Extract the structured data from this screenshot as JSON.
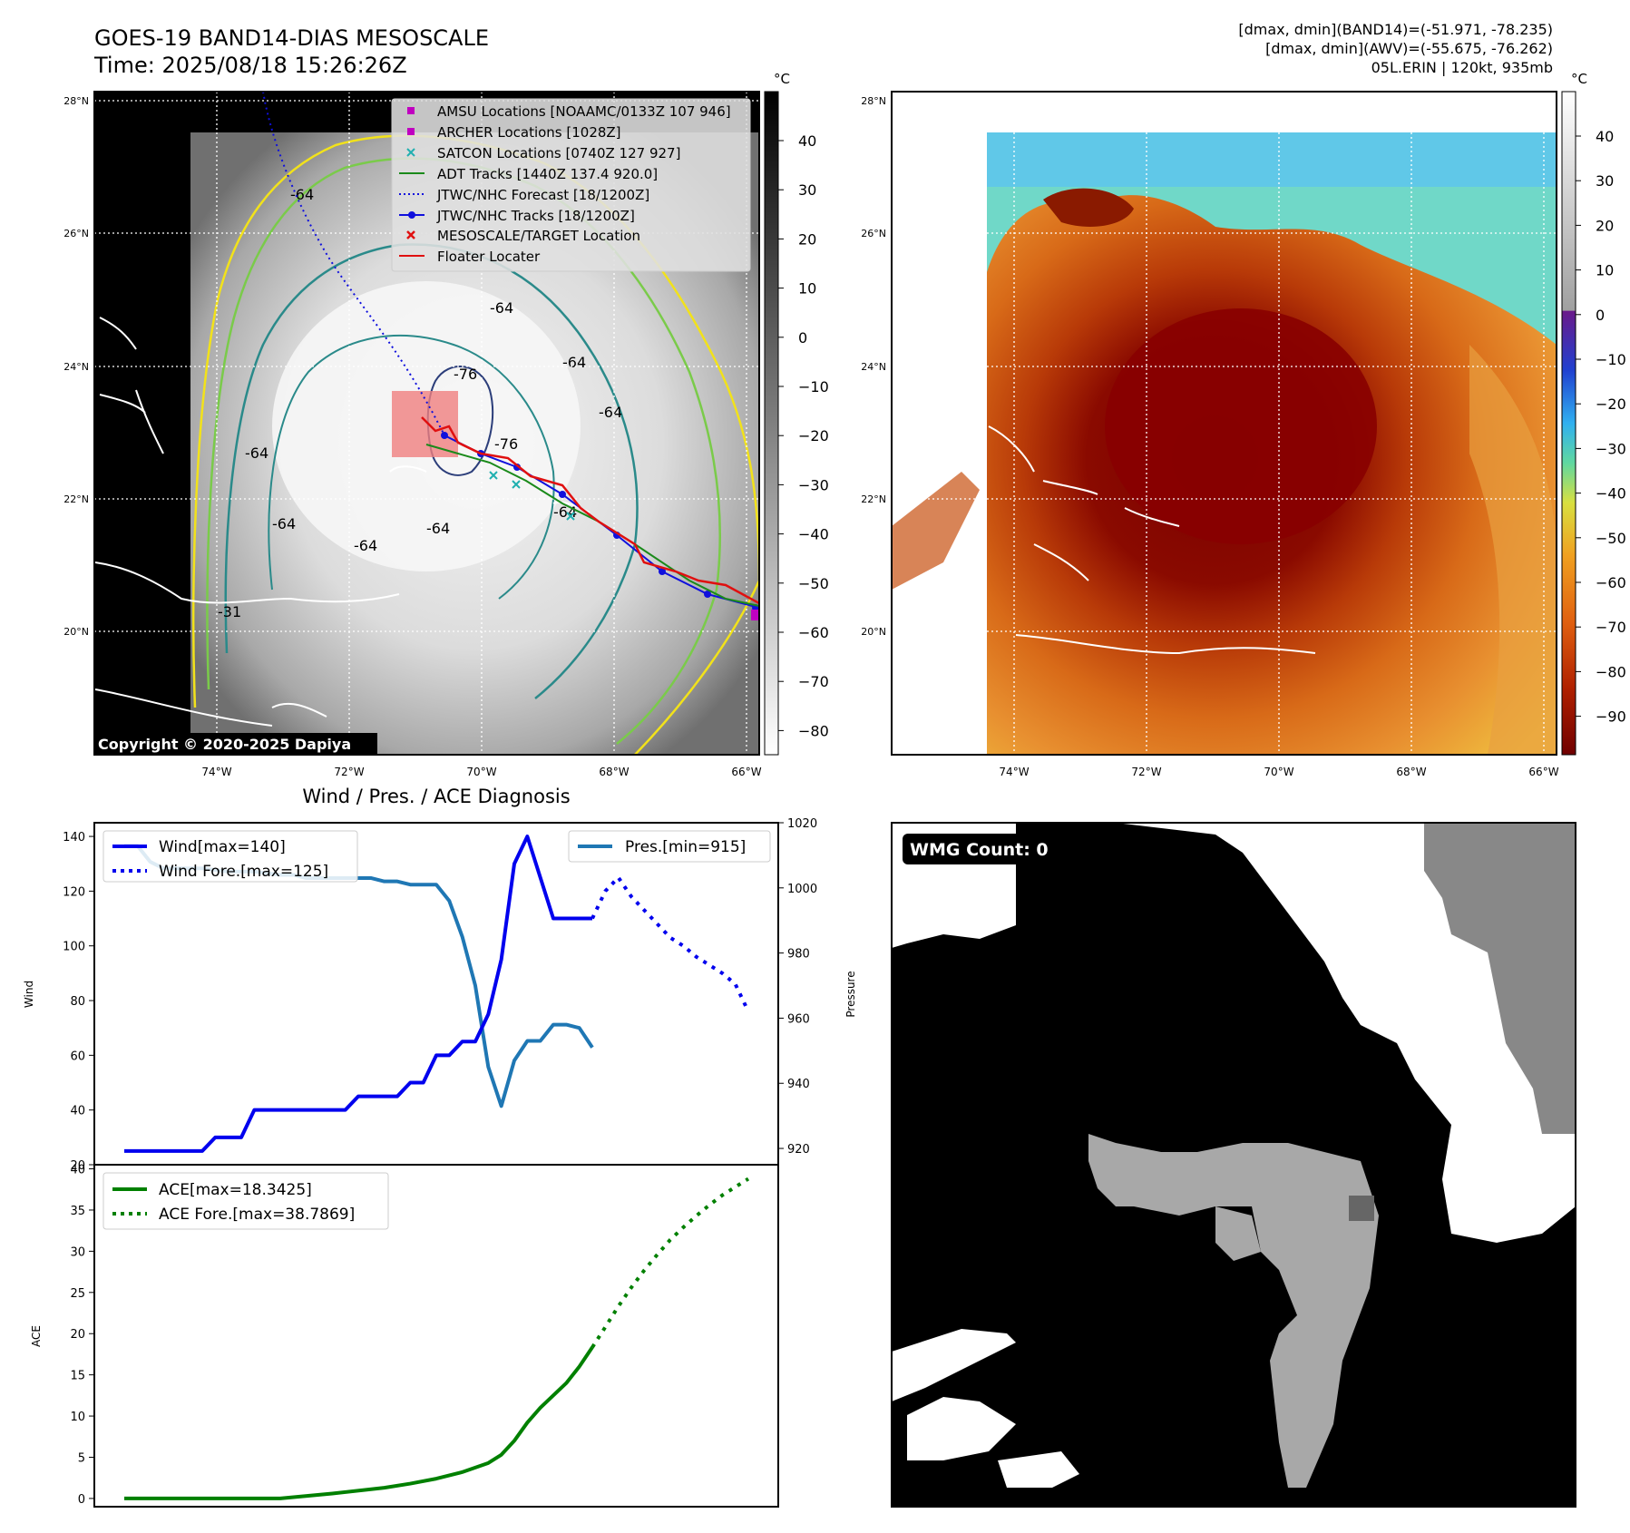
{
  "header": {
    "title": "GOES-19 BAND14-DIAS MESOSCALE",
    "time": "Time: 2025/08/18 15:26:26Z",
    "stats_band14": "[dmax, dmin](BAND14)=(-51.971, -78.235)",
    "stats_awv": "[dmax, dmin](AWV)=(-55.675, -76.262)",
    "storm": "05L.ERIN | 120kt, 935mb"
  },
  "colors": {
    "wind": "#0000ee",
    "pressure": "#1f77b4",
    "ace": "#008000",
    "floater": "#e01010",
    "adt": "#1a8a1a",
    "jtwc": "#1010dd",
    "contour_yellow": "#f2e21a",
    "contour_green": "#7acb4a",
    "contour_teal": "#2a8a8a",
    "contour_navy": "#2c3e7a"
  },
  "ir_panel": {
    "lat_labels": [
      "28°N",
      "26°N",
      "24°N",
      "22°N",
      "20°N"
    ],
    "lon_labels": [
      "74°W",
      "72°W",
      "70°W",
      "68°W",
      "66°W"
    ],
    "colorbar_unit": "°C",
    "colorbar_ticks": [
      "40",
      "30",
      "20",
      "10",
      "0",
      "−10",
      "−20",
      "−30",
      "−40",
      "−50",
      "−60",
      "−70",
      "−80"
    ],
    "copyright": "Copyright © 2020-2025 Dapiya",
    "contour_labels": [
      "-64",
      "-64",
      "-64",
      "-64",
      "-64",
      "-64",
      "-76",
      "-76",
      "-64",
      "-64",
      "-64",
      "-31"
    ],
    "legend": [
      {
        "label": "AMSU Locations [NOAAMC/0133Z 107 946]",
        "symbol": "square",
        "color": "#c000c0"
      },
      {
        "label": "ARCHER Locations [1028Z]",
        "symbol": "square",
        "color": "#c000c0"
      },
      {
        "label": "SATCON Locations [0740Z 127 927]",
        "symbol": "x",
        "color": "#20b0b0"
      },
      {
        "label": "ADT Tracks [1440Z 137.4 920.0]",
        "symbol": "line",
        "color": "#1a8a1a"
      },
      {
        "label": "JTWC/NHC Forecast [18/1200Z]",
        "symbol": "dotted",
        "color": "#1010dd"
      },
      {
        "label": "JTWC/NHC Tracks [18/1200Z]",
        "symbol": "line-dot",
        "color": "#1010dd"
      },
      {
        "label": "MESOSCALE/TARGET Location",
        "symbol": "x",
        "color": "#e01010"
      },
      {
        "label": "Floater Locater",
        "symbol": "line",
        "color": "#e01010"
      }
    ]
  },
  "awv_panel": {
    "lat_labels": [
      "28°N",
      "26°N",
      "24°N",
      "22°N",
      "20°N"
    ],
    "lon_labels": [
      "74°W",
      "72°W",
      "70°W",
      "68°W",
      "66°W"
    ],
    "colorbar_unit": "°C",
    "colorbar_ticks": [
      "40",
      "30",
      "20",
      "10",
      "0",
      "−10",
      "−20",
      "−30",
      "−40",
      "−50",
      "−60",
      "−70",
      "−80",
      "−90"
    ]
  },
  "wmg_panel": {
    "badge": "WMG Count: 0"
  },
  "chart_data": [
    {
      "type": "line",
      "title": "Wind / Pres. / ACE Diagnosis",
      "ylabel": "Wind",
      "ylabel_right": "Pressure",
      "ylim": [
        20,
        145
      ],
      "ylim_right": [
        915,
        1020
      ],
      "yticks": [
        "20",
        "40",
        "60",
        "80",
        "100",
        "120",
        "140"
      ],
      "yticks_right": [
        "920",
        "940",
        "960",
        "980",
        "1000",
        "1020"
      ],
      "x": [
        0,
        1,
        2,
        3,
        4,
        5,
        6,
        7,
        8,
        9,
        10,
        11,
        12,
        13,
        14,
        15,
        16,
        17,
        18,
        19,
        20,
        21,
        22,
        23,
        24,
        25,
        26,
        27,
        28,
        29,
        30,
        31,
        32,
        33,
        34,
        35,
        36,
        37,
        38,
        39,
        40,
        41,
        42,
        43,
        44,
        45,
        46,
        47,
        48
      ],
      "series": [
        {
          "name": "Wind[max=140]",
          "style": "solid",
          "x": [
            0,
            4,
            5,
            6,
            7,
            8,
            9,
            10,
            12,
            14,
            16,
            17,
            18,
            20,
            21,
            22,
            23,
            24,
            25,
            26,
            27,
            28,
            29,
            30,
            31,
            32,
            33,
            34,
            35,
            36
          ],
          "y": [
            25,
            25,
            25,
            25,
            30,
            30,
            30,
            40,
            40,
            40,
            40,
            40,
            45,
            45,
            45,
            50,
            50,
            60,
            60,
            65,
            65,
            75,
            95,
            130,
            140,
            125,
            110,
            110,
            110,
            110
          ]
        },
        {
          "name": "Wind Fore.[max=125]",
          "style": "dotted",
          "x": [
            36,
            37,
            38,
            39,
            40,
            41,
            42,
            43,
            44,
            45,
            46,
            47,
            48
          ],
          "y": [
            110,
            120,
            125,
            118,
            113,
            108,
            103,
            100,
            96,
            93,
            90,
            86,
            76
          ]
        },
        {
          "name": "Pres.[min=915]",
          "style": "solid",
          "axis": "right",
          "x": [
            0,
            1,
            2,
            3,
            4,
            6,
            8,
            10,
            12,
            13,
            14,
            16,
            18,
            19,
            20,
            21,
            22,
            23,
            24,
            25,
            26,
            27,
            28,
            29,
            30,
            31,
            32,
            33,
            34,
            35,
            36
          ],
          "y": [
            1013,
            1013,
            1008,
            1006,
            1006,
            1006,
            1005,
            1005,
            1004,
            1004,
            1003,
            1003,
            1003,
            1003,
            1002,
            1002,
            1001,
            1001,
            1001,
            996,
            985,
            970,
            945,
            933,
            947,
            953,
            953,
            958,
            958,
            957,
            951
          ]
        }
      ]
    },
    {
      "type": "line",
      "title": "",
      "ylabel": "ACE",
      "ylim": [
        -1,
        40.5
      ],
      "yticks": [
        "0",
        "5",
        "10",
        "15",
        "20",
        "25",
        "30",
        "35",
        "40"
      ],
      "series": [
        {
          "name": "ACE[max=18.3425]",
          "style": "solid",
          "x": [
            0,
            4,
            8,
            12,
            16,
            20,
            22,
            24,
            26,
            28,
            29,
            30,
            31,
            32,
            33,
            34,
            35,
            36
          ],
          "y": [
            0,
            0,
            0,
            0,
            0.6,
            1.3,
            1.8,
            2.4,
            3.2,
            4.3,
            5.3,
            7.0,
            9.2,
            11.0,
            12.5,
            14.0,
            16.0,
            18.3425
          ]
        },
        {
          "name": "ACE Fore.[max=38.7869]",
          "style": "dotted",
          "x": [
            36,
            37,
            38,
            39,
            40,
            41,
            42,
            43,
            44,
            45,
            46,
            47,
            48
          ],
          "y": [
            18.3425,
            20.8,
            23.3,
            25.6,
            27.7,
            29.6,
            31.4,
            32.9,
            34.3,
            35.6,
            36.8,
            37.8,
            38.7869
          ]
        }
      ]
    }
  ]
}
